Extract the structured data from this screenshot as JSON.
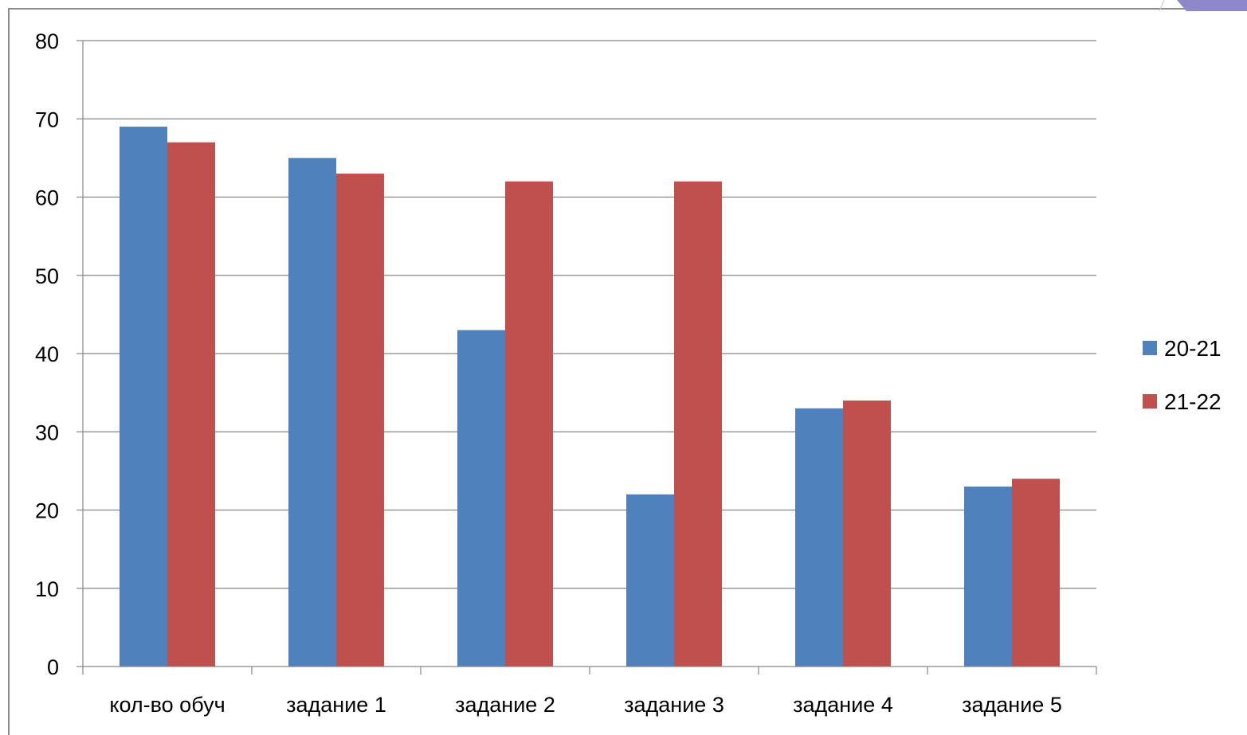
{
  "chart_data": {
    "type": "bar",
    "title": "",
    "xlabel": "",
    "ylabel": "",
    "categories": [
      "кол-во обуч",
      "задание 1",
      "задание 2",
      "задание 3",
      "задание 4",
      "задание 5"
    ],
    "series": [
      {
        "name": "20-21",
        "color": "#4F81BD",
        "values": [
          69,
          65,
          43,
          22,
          33,
          23
        ]
      },
      {
        "name": "21-22",
        "color": "#C0504D",
        "values": [
          67,
          63,
          62,
          62,
          34,
          24
        ]
      }
    ],
    "ylim": [
      0,
      80
    ],
    "yticks": [
      "0",
      "10",
      "20",
      "30",
      "40",
      "50",
      "60",
      "70",
      "80"
    ],
    "grid": true,
    "legend": "right"
  }
}
